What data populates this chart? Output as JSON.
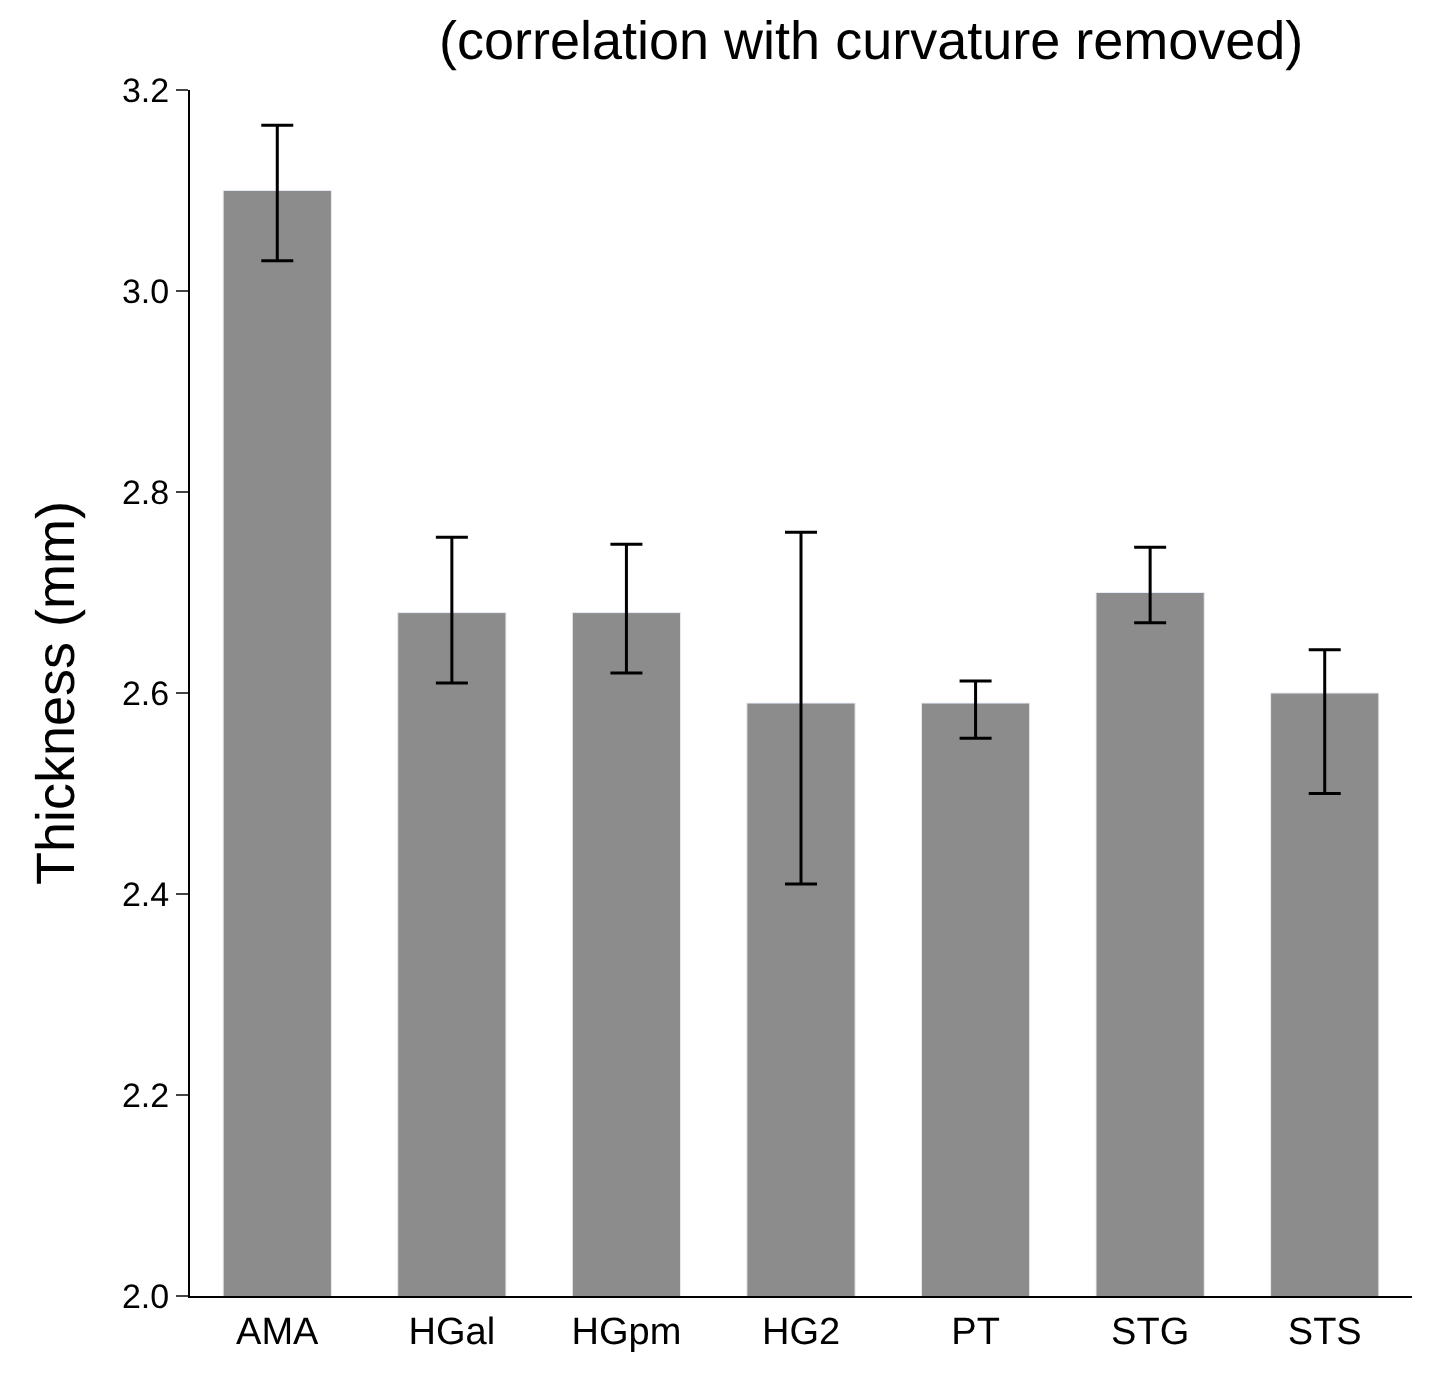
{
  "chart_data": {
    "type": "bar",
    "title": "(correlation with curvature removed)",
    "ylabel": "Thickness (mm)",
    "categories": [
      "AMA",
      "HGal",
      "HGpm",
      "HG2",
      "PT",
      "STG",
      "STS"
    ],
    "values": [
      3.1,
      2.68,
      2.68,
      2.59,
      2.59,
      2.7,
      2.6
    ],
    "errors": [
      [
        3.03,
        3.165
      ],
      [
        2.61,
        2.755
      ],
      [
        2.62,
        2.748
      ],
      [
        2.41,
        2.76
      ],
      [
        2.555,
        2.612
      ],
      [
        2.67,
        2.745
      ],
      [
        2.5,
        2.643
      ]
    ],
    "color": "#8c8c8c",
    "ylim": [
      2.0,
      3.2
    ],
    "yticks": [
      {
        "value": 2.0,
        "label": "2.0"
      },
      {
        "value": 2.2,
        "label": "2.2"
      },
      {
        "value": 2.4,
        "label": "2.4"
      },
      {
        "value": 2.6,
        "label": "2.6"
      },
      {
        "value": 2.8,
        "label": "2.8"
      },
      {
        "value": 3.0,
        "label": "3.0"
      },
      {
        "value": 3.2,
        "label": "3.2"
      }
    ]
  }
}
